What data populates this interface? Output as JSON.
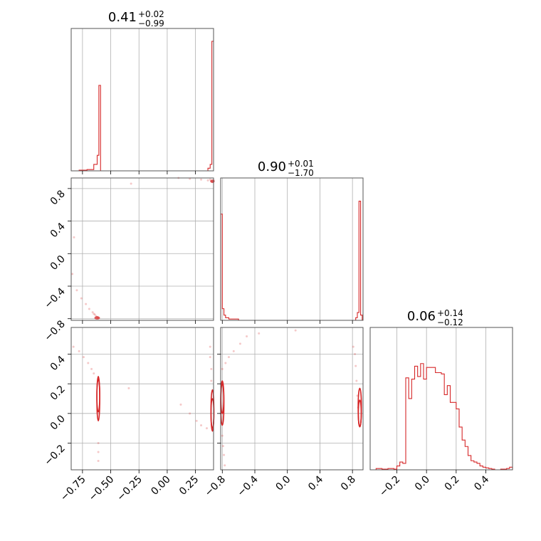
{
  "chart_data": {
    "type": "corner",
    "color": "#d62728",
    "params": [
      {
        "range": [
          -0.85,
          0.41
        ],
        "ticks": [
          -0.75,
          -0.5,
          -0.25,
          0.0,
          0.25
        ],
        "tick_labels": [
          "−0.75",
          "−0.50",
          "−0.25",
          "0.00",
          "0.25"
        ]
      },
      {
        "range": [
          -0.82,
          0.93
        ],
        "ticks": [
          -0.8,
          -0.4,
          0.0,
          0.4,
          0.8
        ],
        "tick_labels": [
          "−0.8",
          "−0.4",
          "0.0",
          "0.4",
          "0.8"
        ]
      },
      {
        "range": [
          -0.38,
          0.58
        ],
        "ticks": [
          -0.2,
          0.0,
          0.2,
          0.4
        ],
        "tick_labels": [
          "−0.2",
          "0.0",
          "0.2",
          "0.4"
        ]
      }
    ],
    "titles": [
      {
        "value": "0.41",
        "upper": "+0.02",
        "lower": "−0.99"
      },
      {
        "value": "0.90",
        "upper": "+0.01",
        "lower": "−1.70"
      },
      {
        "value": "0.06",
        "upper": "+0.14",
        "lower": "−0.12"
      }
    ],
    "histograms": [
      {
        "param": 0,
        "bins": [
          [
            -0.85,
            0.0
          ],
          [
            -0.78,
            0.005
          ],
          [
            -0.71,
            0.01
          ],
          [
            -0.65,
            0.05
          ],
          [
            -0.62,
            0.12
          ],
          [
            -0.605,
            0.66
          ],
          [
            -0.59,
            0.0
          ],
          [
            0.33,
            0.0
          ],
          [
            0.36,
            0.02
          ],
          [
            0.38,
            0.05
          ],
          [
            0.395,
            1.0
          ],
          [
            0.41,
            1.0
          ]
        ]
      },
      {
        "param": 1,
        "bins": [
          [
            -0.82,
            0.82
          ],
          [
            -0.8,
            0.09
          ],
          [
            -0.78,
            0.04
          ],
          [
            -0.76,
            0.02
          ],
          [
            -0.72,
            0.01
          ],
          [
            -0.6,
            0.0
          ],
          [
            0.82,
            0.0
          ],
          [
            0.84,
            0.02
          ],
          [
            0.86,
            0.06
          ],
          [
            0.88,
            0.92
          ],
          [
            0.9,
            0.04
          ],
          [
            0.92,
            0.0
          ]
        ]
      },
      {
        "param": 2,
        "bins": [
          [
            -0.38,
            0.0
          ],
          [
            -0.34,
            0.01
          ],
          [
            -0.3,
            0.005
          ],
          [
            -0.26,
            0.01
          ],
          [
            -0.22,
            0.005
          ],
          [
            -0.2,
            0.03
          ],
          [
            -0.18,
            0.06
          ],
          [
            -0.16,
            0.05
          ],
          [
            -0.14,
            0.71
          ],
          [
            -0.12,
            0.55
          ],
          [
            -0.1,
            0.7
          ],
          [
            -0.08,
            0.8
          ],
          [
            -0.06,
            0.72
          ],
          [
            -0.04,
            0.82
          ],
          [
            -0.02,
            0.7
          ],
          [
            0.0,
            0.79
          ],
          [
            0.02,
            0.79
          ],
          [
            0.04,
            0.79
          ],
          [
            0.06,
            0.75
          ],
          [
            0.08,
            0.75
          ],
          [
            0.1,
            0.74
          ],
          [
            0.12,
            0.58
          ],
          [
            0.14,
            0.65
          ],
          [
            0.16,
            0.52
          ],
          [
            0.18,
            0.52
          ],
          [
            0.2,
            0.47
          ],
          [
            0.22,
            0.33
          ],
          [
            0.24,
            0.23
          ],
          [
            0.26,
            0.18
          ],
          [
            0.28,
            0.11
          ],
          [
            0.3,
            0.07
          ],
          [
            0.32,
            0.06
          ],
          [
            0.34,
            0.05
          ],
          [
            0.36,
            0.03
          ],
          [
            0.38,
            0.02
          ],
          [
            0.4,
            0.015
          ],
          [
            0.42,
            0.01
          ],
          [
            0.44,
            0.005
          ],
          [
            0.46,
            0.0
          ],
          [
            0.5,
            0.005
          ],
          [
            0.54,
            0.01
          ],
          [
            0.56,
            0.02
          ],
          [
            0.58,
            0.0
          ]
        ]
      }
    ],
    "pairs": [
      {
        "x_param": 0,
        "y_param": 1,
        "samples": [
          [
            -0.84,
            -0.25
          ],
          [
            -0.8,
            -0.45
          ],
          [
            -0.76,
            -0.55
          ],
          [
            -0.72,
            -0.62
          ],
          [
            -0.69,
            -0.68
          ],
          [
            -0.66,
            -0.72
          ],
          [
            -0.64,
            -0.75
          ],
          [
            -0.62,
            -0.78
          ],
          [
            -0.61,
            -0.79
          ],
          [
            -0.63,
            -0.77
          ],
          [
            -0.65,
            -0.74
          ],
          [
            -0.825,
            0.2
          ],
          [
            -0.32,
            0.86
          ],
          [
            0.1,
            0.93
          ],
          [
            0.2,
            0.92
          ],
          [
            0.3,
            0.91
          ],
          [
            0.36,
            0.9
          ],
          [
            0.39,
            0.89
          ],
          [
            0.4,
            0.88
          ],
          [
            0.41,
            0.9
          ],
          [
            0.38,
            0.91
          ]
        ],
        "dense": [
          {
            "x": -0.62,
            "y": -0.79,
            "rx": 0.025,
            "ry": 0.02
          },
          {
            "x": 0.4,
            "y": 0.89,
            "rx": 0.02,
            "ry": 0.02
          }
        ]
      },
      {
        "x_param": 0,
        "y_param": 2,
        "samples": [
          [
            -0.83,
            0.45
          ],
          [
            -0.78,
            0.42
          ],
          [
            -0.74,
            0.38
          ],
          [
            -0.7,
            0.34
          ],
          [
            -0.67,
            0.3
          ],
          [
            -0.65,
            0.27
          ],
          [
            -0.61,
            -0.2
          ],
          [
            -0.61,
            -0.26
          ],
          [
            -0.61,
            -0.32
          ],
          [
            -0.34,
            0.17
          ],
          [
            0.12,
            0.06
          ],
          [
            0.2,
            0.0
          ],
          [
            0.26,
            -0.05
          ],
          [
            0.3,
            -0.08
          ],
          [
            0.35,
            -0.1
          ],
          [
            0.38,
            0.45
          ],
          [
            0.38,
            0.38
          ],
          [
            0.39,
            0.3
          ],
          [
            0.39,
            0.22
          ]
        ],
        "contours": [
          {
            "x": -0.61,
            "y": 0.1,
            "rx": 0.012,
            "ry": 0.15
          },
          {
            "x": -0.61,
            "y": 0.12,
            "rx": 0.008,
            "ry": 0.11
          },
          {
            "x": 0.4,
            "y": 0.02,
            "rx": 0.008,
            "ry": 0.14
          },
          {
            "x": 0.4,
            "y": 0.0,
            "rx": 0.005,
            "ry": 0.1
          }
        ]
      },
      {
        "x_param": 1,
        "y_param": 2,
        "samples": [
          [
            -0.8,
            0.3
          ],
          [
            -0.76,
            0.34
          ],
          [
            -0.72,
            0.38
          ],
          [
            -0.66,
            0.42
          ],
          [
            -0.58,
            0.47
          ],
          [
            -0.5,
            0.52
          ],
          [
            -0.35,
            0.54
          ],
          [
            -0.8,
            -0.15
          ],
          [
            -0.79,
            -0.22
          ],
          [
            -0.78,
            -0.28
          ],
          [
            -0.77,
            -0.35
          ],
          [
            0.1,
            0.56
          ],
          [
            0.81,
            0.45
          ],
          [
            0.83,
            0.4
          ],
          [
            0.84,
            0.32
          ],
          [
            0.85,
            0.22
          ],
          [
            0.86,
            0.12
          ],
          [
            0.87,
            0.04
          ]
        ],
        "contours": [
          {
            "x": -0.8,
            "y": 0.07,
            "rx": 0.02,
            "ry": 0.15
          },
          {
            "x": -0.8,
            "y": 0.1,
            "rx": 0.012,
            "ry": 0.1
          },
          {
            "x": 0.89,
            "y": 0.04,
            "rx": 0.02,
            "ry": 0.13
          },
          {
            "x": 0.89,
            "y": 0.0,
            "rx": 0.013,
            "ry": 0.09
          }
        ]
      }
    ]
  }
}
